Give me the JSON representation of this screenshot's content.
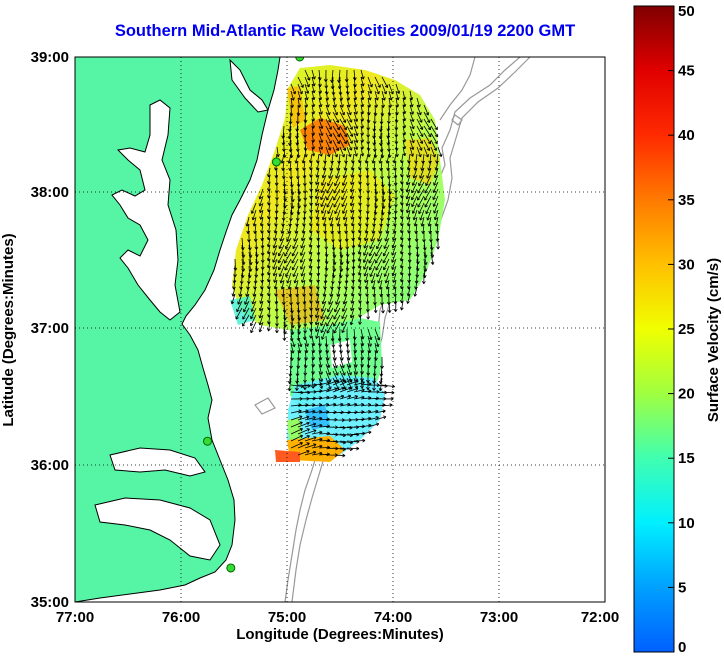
{
  "title": "Southern Mid-Atlantic Raw Velocities 2009/01/19 2200 GMT",
  "map": {
    "xlabel": "Longitude (Degrees:Minutes)",
    "ylabel": "Latitude (Degrees:Minutes)",
    "x_ticks": [
      "77:00",
      "76:00",
      "75:00",
      "74:00",
      "73:00",
      "72:00"
    ],
    "y_ticks": [
      "39:00",
      "38:00",
      "37:00",
      "36:00",
      "35:00"
    ],
    "lon_range": [
      -77,
      -72
    ],
    "lat_range": [
      35,
      39
    ],
    "grid": "dotted",
    "land_color": "#55f5a5",
    "coast_color": "#000000",
    "bathymetry_color": "#999999",
    "sites": [
      {
        "lon": -74.88,
        "lat": 39.0
      },
      {
        "lon": -75.1,
        "lat": 38.23
      },
      {
        "lon": -75.75,
        "lat": 36.18
      },
      {
        "lon": -75.53,
        "lat": 35.25
      }
    ]
  },
  "colorbar": {
    "label": "Surface Velocity (cm/s)",
    "min": 0,
    "max": 50,
    "ticks": [
      "0",
      "5",
      "10",
      "15",
      "20",
      "25",
      "30",
      "35",
      "40",
      "45",
      "50"
    ]
  }
}
